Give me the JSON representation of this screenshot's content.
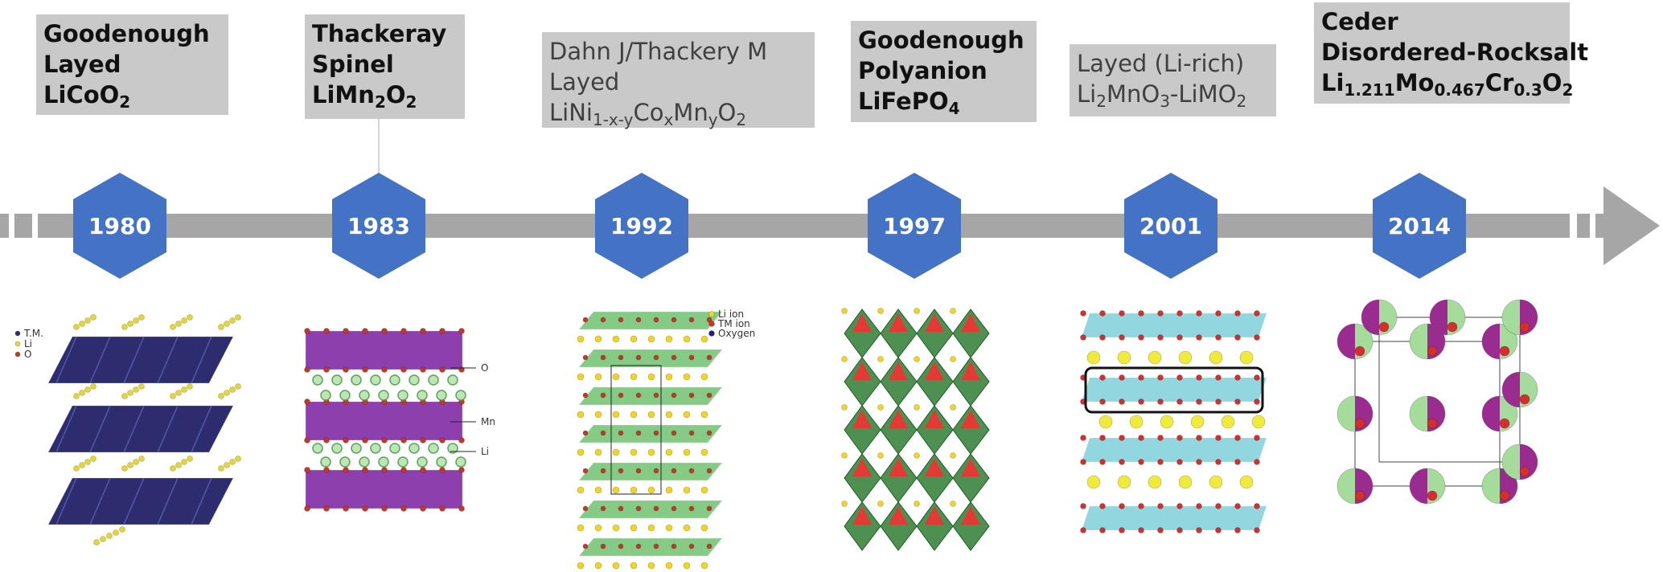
{
  "nodes": [
    {
      "year": "1980",
      "lines": [
        "Goodenough",
        "Layed"
      ],
      "formula": [
        {
          "text": "LiCoO"
        },
        {
          "text": "2",
          "sub": true
        }
      ],
      "image_labels": [
        "T.M.",
        "Li",
        "O"
      ]
    },
    {
      "year": "1983",
      "lines": [
        "Thackeray",
        "Spinel"
      ],
      "formula": [
        {
          "text": "LiMn"
        },
        {
          "text": "2",
          "sub": true
        },
        {
          "text": "O"
        },
        {
          "text": "2",
          "sub": true
        }
      ],
      "image_labels": [
        "O",
        "Mn",
        "Li"
      ]
    },
    {
      "year": "1992",
      "lines": [
        "Dahn J/Thackery M",
        "Layed"
      ],
      "formula": [
        {
          "text": "LiNi"
        },
        {
          "text": "1-x-y",
          "sub": true
        },
        {
          "text": "Co"
        },
        {
          "text": "x",
          "sub": true
        },
        {
          "text": "Mn"
        },
        {
          "text": "y",
          "sub": true
        },
        {
          "text": "O"
        },
        {
          "text": "2",
          "sub": true
        }
      ],
      "image_labels": [
        "Li ion",
        "TM ion",
        "Oxygen"
      ]
    },
    {
      "year": "1997",
      "lines": [
        "Goodenough",
        "Polyanion"
      ],
      "formula": [
        {
          "text": "LiFePO"
        },
        {
          "text": "4",
          "sub": true
        }
      ],
      "image_labels": []
    },
    {
      "year": "2001",
      "lines": [
        "Layed (Li-rich)"
      ],
      "formula": [
        {
          "text": "Li"
        },
        {
          "text": "2",
          "sub": true
        },
        {
          "text": "MnO"
        },
        {
          "text": "3",
          "sub": true
        },
        {
          "text": "-LiMO"
        },
        {
          "text": "2",
          "sub": true
        }
      ],
      "image_labels": []
    },
    {
      "year": "2014",
      "lines": [
        "Ceder",
        "Disordered-Rocksalt"
      ],
      "formula": [
        {
          "text": "Li"
        },
        {
          "text": "1.211",
          "sub": true
        },
        {
          "text": "Mo"
        },
        {
          "text": "0.467",
          "sub": true
        },
        {
          "text": "Cr"
        },
        {
          "text": "0.3",
          "sub": true
        },
        {
          "text": "O"
        },
        {
          "text": "2",
          "sub": true
        }
      ],
      "image_labels": []
    }
  ]
}
